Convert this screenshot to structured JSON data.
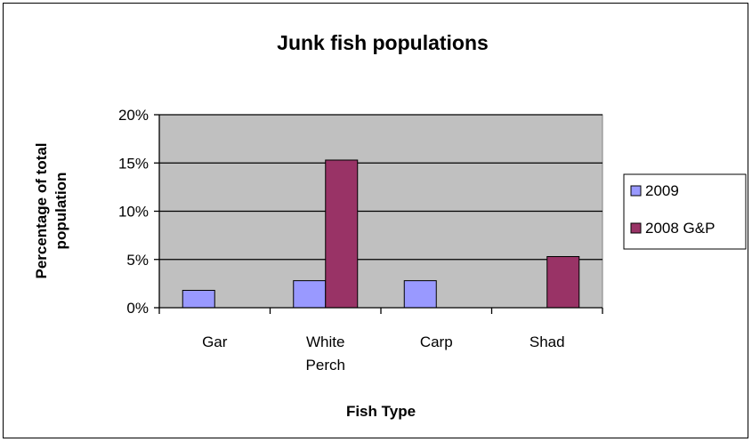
{
  "chart_data": {
    "type": "bar",
    "title": "Junk fish populations",
    "xlabel": "Fish Type",
    "ylabel": "Percentage of total population",
    "ylabel_lines": [
      "Percentage of total",
      "population"
    ],
    "categories": [
      "Gar",
      "White Perch",
      "Carp",
      "Shad"
    ],
    "category_lines": [
      [
        "Gar"
      ],
      [
        "White",
        "Perch"
      ],
      [
        "Carp"
      ],
      [
        "Shad"
      ]
    ],
    "series": [
      {
        "name": "2009",
        "values": [
          1.8,
          2.8,
          2.8,
          0
        ],
        "color": "#9999ff"
      },
      {
        "name": "2008 G&P",
        "values": [
          0,
          15.3,
          0,
          5.3
        ],
        "color": "#993366"
      }
    ],
    "ylim": [
      0,
      20
    ],
    "yticks": [
      0,
      5,
      10,
      15,
      20
    ],
    "ytick_labels": [
      "0%",
      "5%",
      "10%",
      "15%",
      "20%"
    ],
    "grid": true,
    "plot_background": "#c0c0c0",
    "legend_position": "right"
  }
}
